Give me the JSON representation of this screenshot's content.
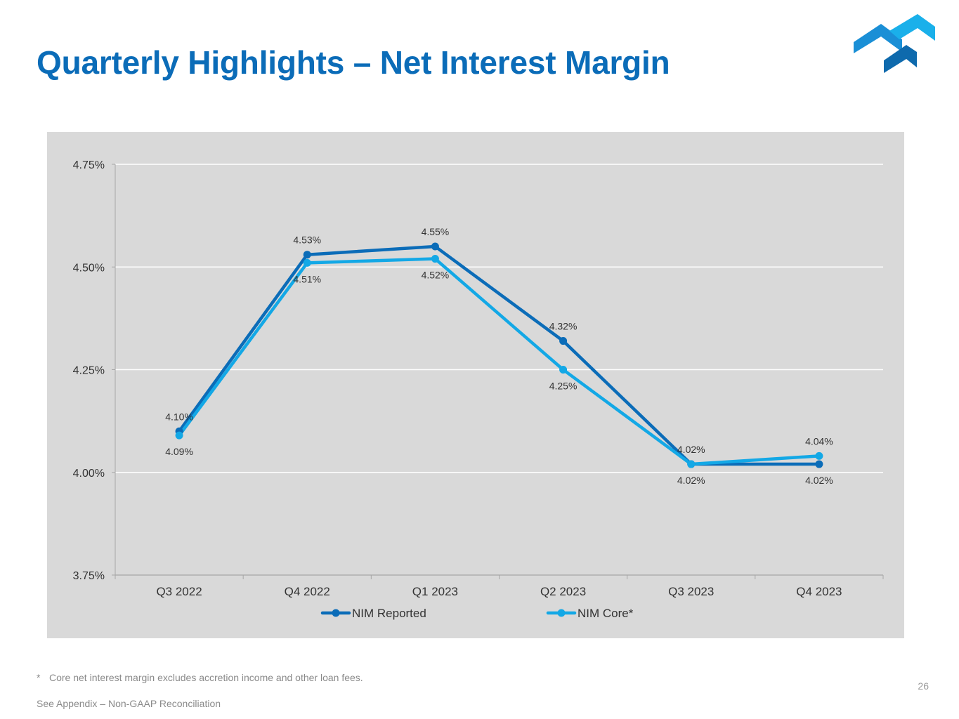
{
  "slide": {
    "title": "Quarterly Highlights – Net Interest Margin",
    "footnote_marker": "*",
    "footnote_text": "Core net interest margin excludes accretion income and other loan fees.",
    "appendix_note": "See Appendix – Non-GAAP Reconciliation",
    "page_number": "26"
  },
  "colors": {
    "title": "#0b6cb8",
    "nim_reported": "#0b6cb8",
    "nim_core": "#13a8e6",
    "panel": "#d9d9d9",
    "gridline": "#ffffff",
    "logo_dark": "#0e6aad",
    "logo_mid": "#1a8fd6",
    "logo_light": "#1ab0ea"
  },
  "chart_data": {
    "type": "line",
    "title": "",
    "xlabel": "",
    "ylabel": "",
    "categories": [
      "Q3 2022",
      "Q4 2022",
      "Q1 2023",
      "Q2 2023",
      "Q3 2023",
      "Q4 2023"
    ],
    "ylim": [
      3.75,
      4.75
    ],
    "yticks": [
      3.75,
      4.0,
      4.25,
      4.5,
      4.75
    ],
    "ytick_labels": [
      "3.75%",
      "4.00%",
      "4.25%",
      "4.50%",
      "4.75%"
    ],
    "grid": true,
    "legend_position": "bottom",
    "series": [
      {
        "name": "NIM Reported",
        "values": [
          4.1,
          4.53,
          4.55,
          4.32,
          4.02,
          4.02
        ],
        "labels": [
          "4.10%",
          "4.53%",
          "4.55%",
          "4.32%",
          "4.02%",
          "4.02%"
        ],
        "label_side": [
          "above",
          "above",
          "above",
          "above",
          "above",
          "below"
        ]
      },
      {
        "name": "NIM Core*",
        "values": [
          4.09,
          4.51,
          4.52,
          4.25,
          4.02,
          4.04
        ],
        "labels": [
          "4.09%",
          "4.51%",
          "4.52%",
          "4.25%",
          "4.02%",
          "4.04%"
        ],
        "label_side": [
          "below",
          "below",
          "below",
          "below",
          "below",
          "above"
        ]
      }
    ]
  }
}
